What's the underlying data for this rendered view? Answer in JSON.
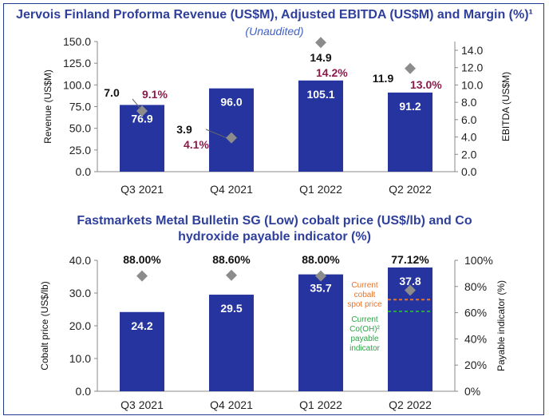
{
  "chart_data": [
    {
      "type": "bar",
      "title": "Jervois Finland Proforma Revenue (US$M), Adjusted EBITDA (US$M) and Margin (%)¹",
      "subtitle": "(Unaudited)",
      "categories": [
        "Q3 2021",
        "Q4 2021",
        "Q1 2022",
        "Q2 2022"
      ],
      "ylabel": "Revenue (US$M)",
      "y2label": "EBITDA (US$M)",
      "ylim": [
        0,
        150
      ],
      "y2lim": [
        0,
        15
      ],
      "yticks": [
        "0.0",
        "25.0",
        "50.0",
        "75.0",
        "100.0",
        "125.0",
        "150.0"
      ],
      "y2ticks": [
        "0.0",
        "2.0",
        "4.0",
        "6.0",
        "8.0",
        "10.0",
        "12.0",
        "14.0"
      ],
      "series": [
        {
          "type": "bar",
          "values": [
            76.9,
            96.0,
            105.1,
            91.2
          ],
          "labels": [
            "76.9",
            "96.0",
            "105.1",
            "91.2"
          ]
        },
        {
          "type": "scatter",
          "axis": "secondary",
          "values": [
            7.0,
            3.9,
            14.9,
            11.9
          ],
          "labels": [
            "7.0",
            "3.9",
            "14.9",
            "11.9"
          ]
        },
        {
          "type": "text",
          "values": [
            9.1,
            4.1,
            14.2,
            13.0
          ],
          "labels": [
            "9.1%",
            "4.1%",
            "14.2%",
            "13.0%"
          ]
        }
      ],
      "colors": {
        "bar": "#2634a0",
        "marker": "#8c8c8c",
        "margin": "#8b1a4a"
      }
    },
    {
      "type": "bar",
      "title_lines": [
        "Fastmarkets Metal Bulletin SG (Low) cobalt price (US$/lb) and Co",
        "hydroxide payable indicator (%)"
      ],
      "categories": [
        "Q3 2021",
        "Q4 2021",
        "Q1 2022",
        "Q2 2022"
      ],
      "ylabel": "Cobalt price (US$/lb)",
      "y2label": "Payable indicator (%)",
      "ylim": [
        0,
        40
      ],
      "y2lim": [
        0,
        100
      ],
      "yticks": [
        "0.0",
        "10.0",
        "20.0",
        "30.0",
        "40.0"
      ],
      "y2ticks": [
        "0%",
        "20%",
        "40%",
        "60%",
        "80%",
        "100%"
      ],
      "series": [
        {
          "type": "bar",
          "values": [
            24.2,
            29.5,
            35.7,
            37.8
          ],
          "labels": [
            "24.2",
            "29.5",
            "35.7",
            "37.8"
          ]
        },
        {
          "type": "scatter",
          "axis": "secondary",
          "values": [
            88.0,
            88.6,
            88.0,
            77.12
          ],
          "labels": [
            "88.00%",
            "88.60%",
            "88.00%",
            "77.12%"
          ]
        }
      ],
      "reference_lines": [
        {
          "axis": "secondary",
          "value": 70,
          "style": "dashed",
          "color": "#e8742a",
          "label_lines": [
            "Current",
            "cobalt",
            "spot price"
          ]
        },
        {
          "axis": "secondary",
          "value": 61,
          "style": "dashed",
          "color": "#2aa645",
          "label_lines": [
            "Current",
            "Co(OH)²",
            "payable",
            "indicator"
          ]
        }
      ],
      "colors": {
        "bar": "#2634a0",
        "marker": "#8c8c8c"
      }
    }
  ]
}
